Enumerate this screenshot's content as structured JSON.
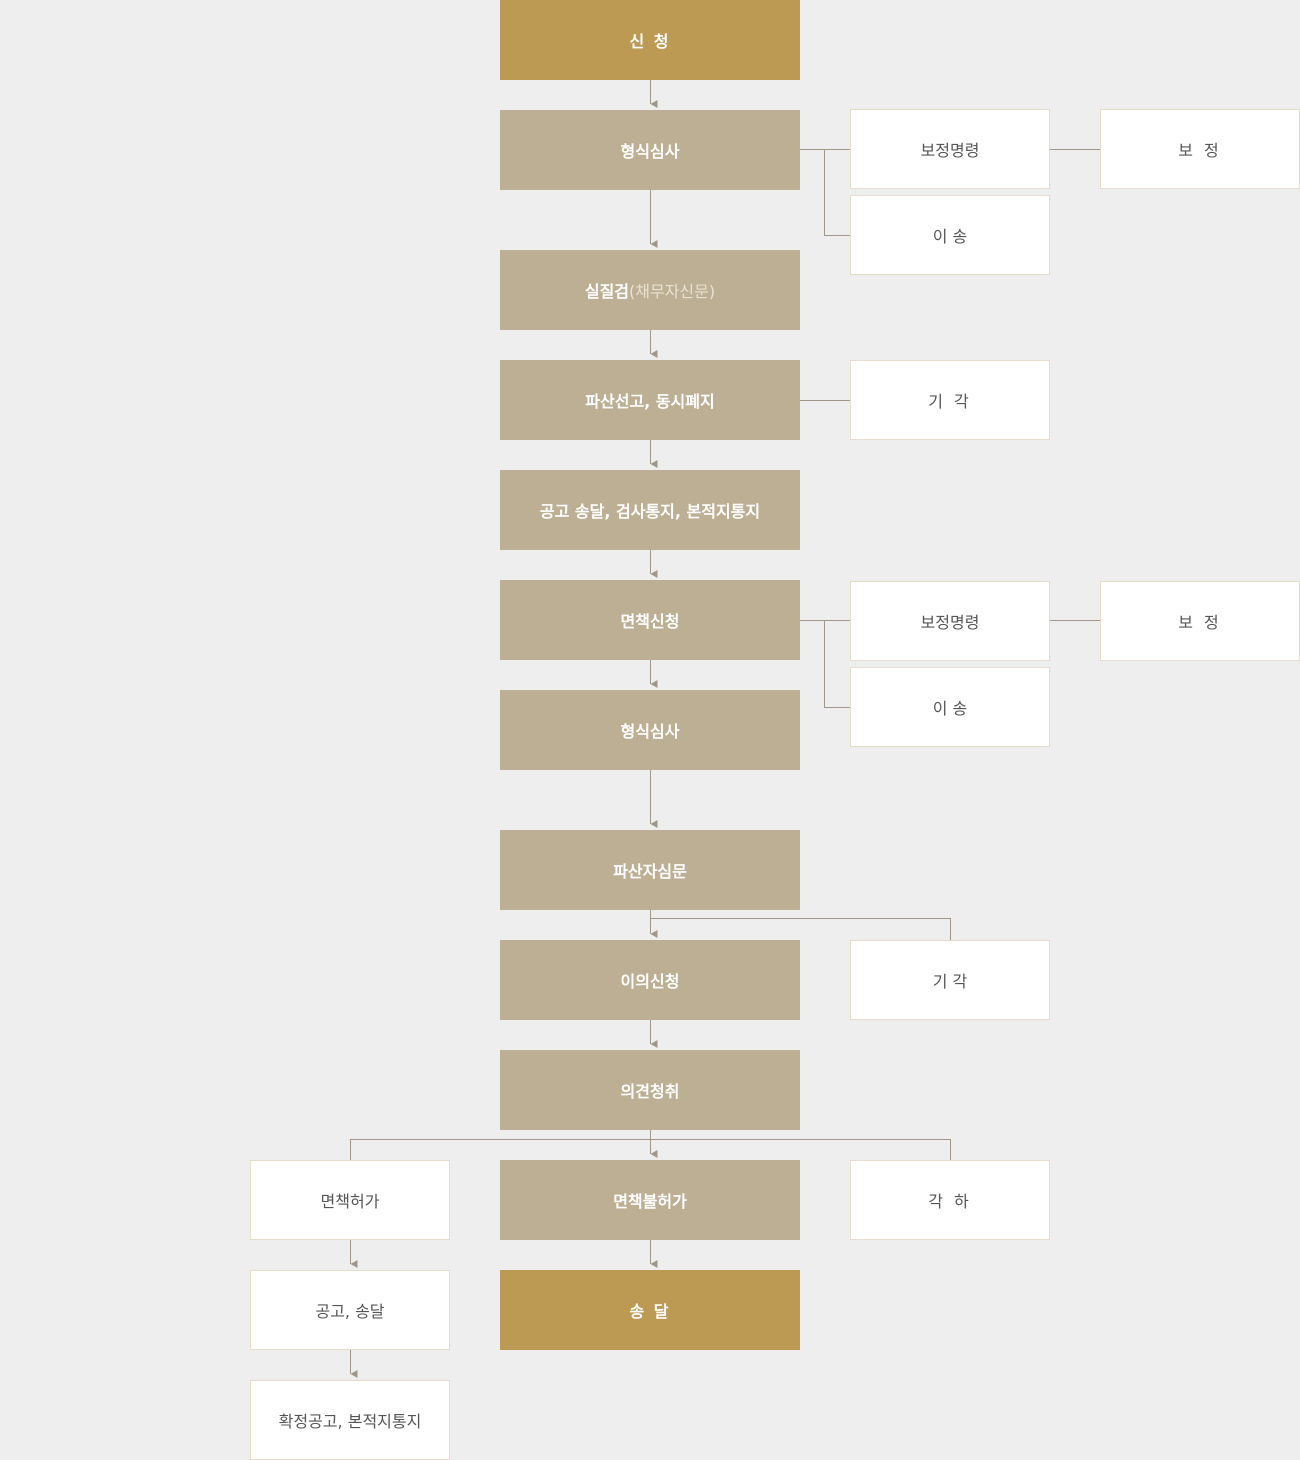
{
  "colors": {
    "primary": "#bc9a53",
    "step": "#bcaf94",
    "background": "#eeeeee",
    "connector": "#a0978a"
  },
  "main": [
    {
      "label": "신 청"
    },
    {
      "label": "형식심사"
    },
    {
      "label": "실질검",
      "sub": "(채무자신문)"
    },
    {
      "label": "파산선고, 동시폐지"
    },
    {
      "label": "공고 송달, 검사통지, 본적지통지"
    },
    {
      "label": "면책신청"
    },
    {
      "label": "형식심사"
    },
    {
      "label": "파산자심문"
    },
    {
      "label": "이의신청"
    },
    {
      "label": "의견청취"
    },
    {
      "label": "면책불허가"
    },
    {
      "label": "송 달"
    }
  ],
  "side": {
    "correction_order_1": "보정명령",
    "correction_1": "보 정",
    "transfer_1": "이 송",
    "dismissal_1": "기 각",
    "correction_order_2": "보정명령",
    "correction_2": "보 정",
    "transfer_2": "이 송",
    "dismissal_2": "기 각",
    "discharge_granted": "면책허가",
    "rejection": "각 하",
    "notice_delivery": "공고, 송달",
    "final_notice": "확정공고, 본적지통지"
  }
}
